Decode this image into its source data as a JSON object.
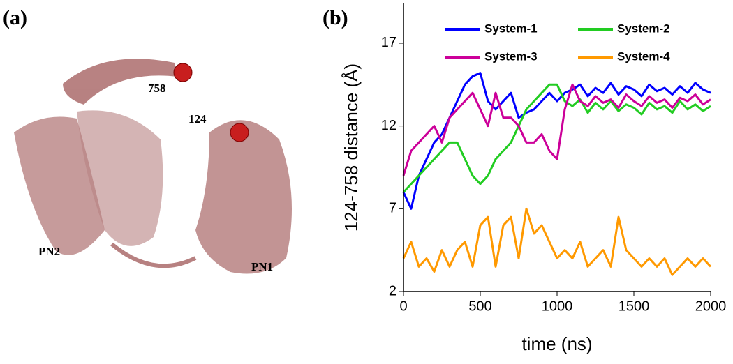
{
  "panel_a": {
    "label": "(a)",
    "sites": [
      "758",
      "124"
    ],
    "domains": [
      "PN2",
      "PN1"
    ]
  },
  "chart_data": {
    "type": "line",
    "title": "(b)",
    "x_label": "time (ns)",
    "y_label": "124-758 distance (Å)",
    "x": [
      0,
      50,
      100,
      150,
      200,
      250,
      300,
      350,
      400,
      450,
      500,
      550,
      600,
      650,
      700,
      750,
      800,
      850,
      900,
      950,
      1000,
      1050,
      1100,
      1150,
      1200,
      1250,
      1300,
      1350,
      1400,
      1450,
      1500,
      1550,
      1600,
      1650,
      1700,
      1750,
      1800,
      1850,
      1900,
      1950,
      2000
    ],
    "xlim": [
      0,
      2000
    ],
    "xticks": [
      0,
      500,
      1000,
      1500,
      2000
    ],
    "ylim": [
      2,
      19.4
    ],
    "yticks": [
      2,
      7,
      12,
      17
    ],
    "series": [
      {
        "name": "System-1",
        "color": "#0000ff",
        "values": [
          8,
          7,
          9,
          10,
          11,
          11.5,
          12.5,
          13.5,
          14.5,
          15,
          15.2,
          13.5,
          13,
          13.5,
          14,
          12.5,
          12.8,
          13,
          13.5,
          14,
          13.5,
          14,
          14.2,
          14.5,
          13.8,
          14.3,
          14,
          14.6,
          13.9,
          14.4,
          14.2,
          13.8,
          14.5,
          14.1,
          14.3,
          13.9,
          14.4,
          14,
          14.6,
          14.2,
          14
        ]
      },
      {
        "name": "System-2",
        "color": "#22cc22",
        "values": [
          8,
          8.5,
          9,
          9.5,
          10,
          10.5,
          11,
          11,
          10,
          9,
          8.5,
          9,
          10,
          10.5,
          11,
          12,
          13,
          13.5,
          14,
          14.5,
          14.5,
          13.5,
          13.2,
          13.6,
          12.8,
          13.4,
          13,
          13.5,
          12.9,
          13.3,
          13.1,
          12.7,
          13.4,
          13,
          13.2,
          12.8,
          13.5,
          13,
          13.3,
          12.9,
          13.2
        ]
      },
      {
        "name": "System-3",
        "color": "#cc0099",
        "values": [
          9,
          10.5,
          11,
          11.5,
          12,
          11,
          12.5,
          13,
          13.5,
          14,
          13,
          12,
          14,
          12.5,
          12.5,
          12,
          11,
          11,
          11.5,
          10.5,
          10,
          13,
          14.5,
          13.5,
          13.2,
          13.8,
          13.4,
          13.6,
          13.1,
          13.9,
          13.5,
          13.2,
          13.8,
          13.4,
          13.6,
          13.1,
          13.7,
          13.5,
          13.9,
          13.3,
          13.6
        ]
      },
      {
        "name": "System-4",
        "color": "#ff9900",
        "values": [
          4,
          5,
          3.5,
          4,
          3.2,
          4.5,
          3.5,
          4.5,
          5,
          3.5,
          6,
          6.5,
          3.5,
          6,
          6.5,
          4,
          7,
          5.5,
          6,
          5,
          4,
          4.5,
          4,
          5,
          3.5,
          4,
          4.5,
          3.5,
          6.5,
          4.5,
          4,
          3.5,
          4,
          3.5,
          4,
          3,
          3.5,
          4,
          3.5,
          4,
          3.5
        ]
      }
    ]
  }
}
